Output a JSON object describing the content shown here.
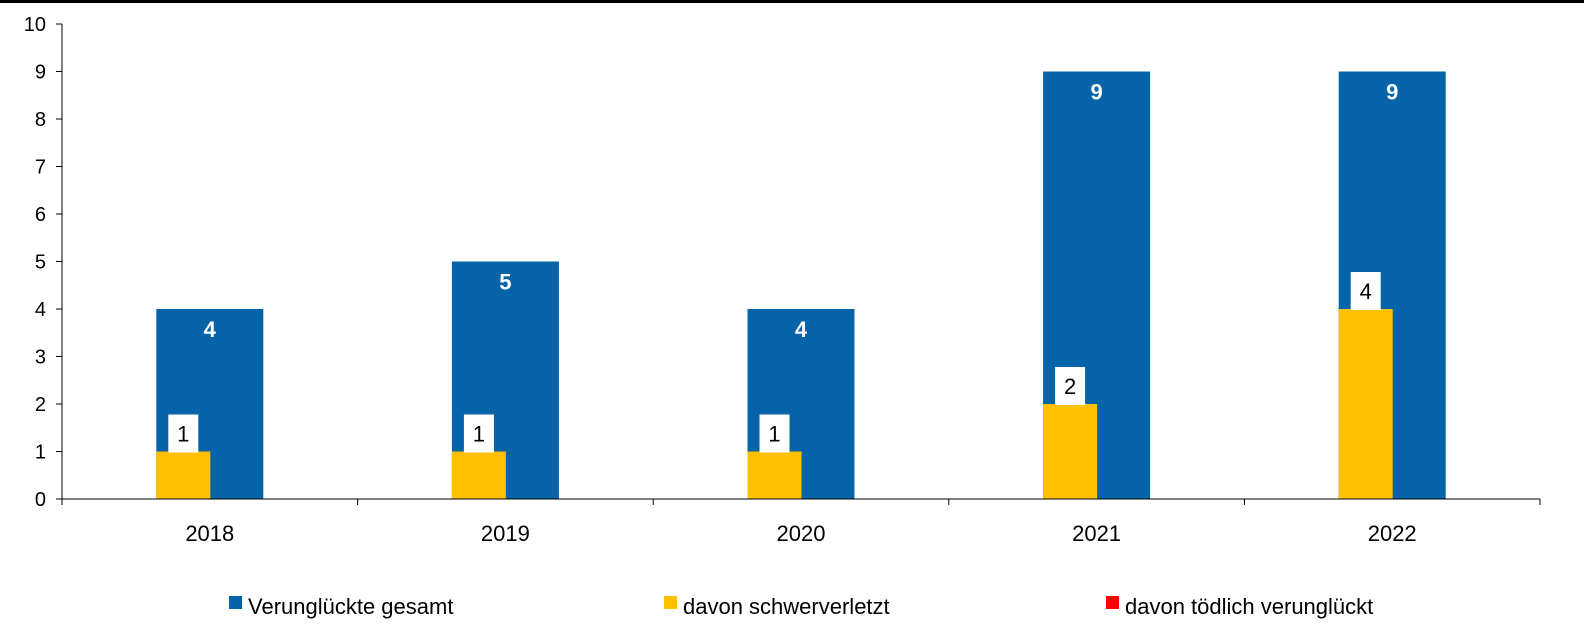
{
  "chart_data": {
    "type": "bar",
    "categories": [
      "2018",
      "2019",
      "2020",
      "2021",
      "2022"
    ],
    "series": [
      {
        "name": "Verunglückte gesamt",
        "values": [
          4,
          5,
          4,
          9,
          9
        ],
        "color": "#0563A9"
      },
      {
        "name": "davon schwerverletzt",
        "values": [
          1,
          1,
          1,
          2,
          4
        ],
        "color": "#FFC000"
      },
      {
        "name": "davon tödlich verunglückt",
        "values": [
          0,
          0,
          0,
          0,
          0
        ],
        "color": "#FF0000"
      }
    ],
    "ylim": [
      0,
      10
    ],
    "yticks": [
      0,
      1,
      2,
      3,
      4,
      5,
      6,
      7,
      8,
      9,
      10
    ],
    "legend_position": "bottom",
    "grid": false
  }
}
